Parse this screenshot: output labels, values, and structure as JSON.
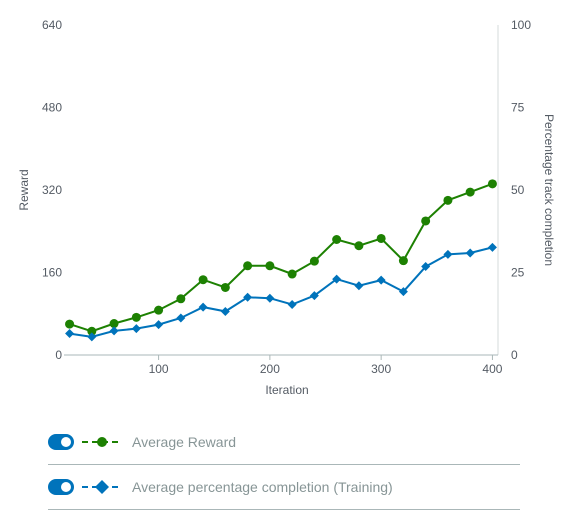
{
  "chart_data": {
    "type": "line",
    "x": [
      20,
      40,
      60,
      80,
      100,
      120,
      140,
      160,
      180,
      200,
      220,
      240,
      260,
      280,
      300,
      320,
      340,
      360,
      380,
      400
    ],
    "xlabel": "Iteration",
    "ylabel": "Reward",
    "y2label": "Percentage track completion",
    "xlim": [
      15,
      405
    ],
    "ylim": [
      0,
      640
    ],
    "y2lim": [
      0,
      100
    ],
    "x_ticks": [
      "100",
      "200",
      "300",
      "400"
    ],
    "y_ticks": [
      "0",
      "160",
      "320",
      "480",
      "640"
    ],
    "y2_ticks": [
      "0",
      "25",
      "50",
      "75",
      "100"
    ],
    "grid": false,
    "legend_position": "bottom",
    "series": [
      {
        "name": "Average Reward",
        "axis": "left",
        "color": "#1d8102",
        "marker": "circle",
        "values": [
          60,
          46,
          61,
          73,
          87,
          109,
          146,
          131,
          173,
          173,
          157,
          182,
          224,
          212,
          226,
          183,
          260,
          300,
          316,
          332
        ]
      },
      {
        "name": "Average percentage completion (Training)",
        "axis": "right",
        "color": "#0073bb",
        "marker": "diamond",
        "values": [
          6.5,
          5.5,
          7.3,
          8.0,
          9.2,
          11.2,
          14.5,
          13.2,
          17.5,
          17.2,
          15.3,
          18.0,
          23.0,
          21.0,
          22.7,
          19.2,
          26.8,
          30.5,
          30.9,
          32.6
        ]
      }
    ]
  },
  "legend": {
    "toggle_color": "#0073bb"
  }
}
